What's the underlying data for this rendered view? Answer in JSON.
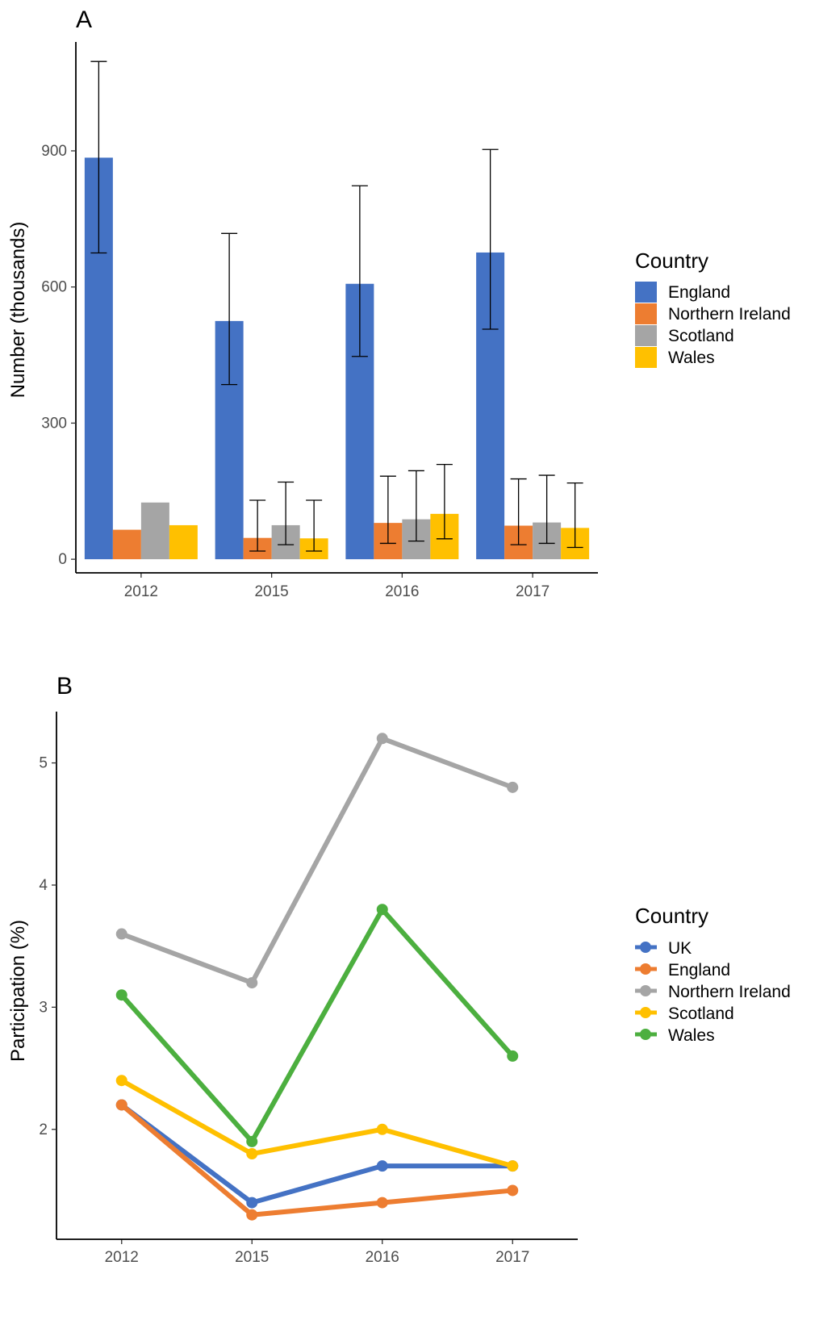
{
  "chart_data": [
    {
      "panel_label": "A",
      "type": "bar",
      "categories": [
        "2012",
        "2015",
        "2016",
        "2017"
      ],
      "xlabel": "",
      "ylabel": "Number (thousands)",
      "yticks": [
        "0",
        "300",
        "600",
        "900"
      ],
      "ylim": [
        -30,
        1140
      ],
      "grid": false,
      "legend": {
        "title": "Country",
        "position": "right"
      },
      "series": [
        {
          "name": "England",
          "color": "#4472C4",
          "values": [
            885,
            525,
            607,
            676
          ],
          "err_low": [
            675,
            385,
            447,
            507
          ],
          "err_high": [
            1097,
            718,
            823,
            903
          ]
        },
        {
          "name": "Northern Ireland",
          "color": "#ED7D31",
          "values": [
            65,
            47,
            80,
            74
          ],
          "err_low": [
            null,
            18,
            35,
            32
          ],
          "err_high": [
            null,
            130,
            183,
            177
          ]
        },
        {
          "name": "Scotland",
          "color": "#A5A5A5",
          "values": [
            125,
            75,
            88,
            81
          ],
          "err_low": [
            null,
            32,
            40,
            35
          ],
          "err_high": [
            null,
            170,
            195,
            185
          ]
        },
        {
          "name": "Wales",
          "color": "#FFC000",
          "values": [
            75,
            46,
            100,
            69
          ],
          "err_low": [
            null,
            18,
            45,
            26
          ],
          "err_high": [
            null,
            130,
            209,
            168
          ]
        }
      ]
    },
    {
      "panel_label": "B",
      "type": "line",
      "x": [
        "2012",
        "2015",
        "2016",
        "2017"
      ],
      "xlabel": "",
      "ylabel": "Participation (%)",
      "yticks": [
        "2",
        "3",
        "4",
        "5"
      ],
      "ylim": [
        1.1,
        5.42
      ],
      "grid": false,
      "legend": {
        "title": "Country",
        "position": "right"
      },
      "series": [
        {
          "name": "UK",
          "color": "#4472C4",
          "values": [
            2.2,
            1.4,
            1.7,
            1.7
          ]
        },
        {
          "name": "England",
          "color": "#ED7D31",
          "values": [
            2.2,
            1.3,
            1.4,
            1.5
          ]
        },
        {
          "name": "Northern Ireland",
          "color": "#A5A5A5",
          "values": [
            3.6,
            3.2,
            5.2,
            4.8
          ]
        },
        {
          "name": "Scotland",
          "color": "#FFC000",
          "values": [
            2.4,
            1.8,
            2.0,
            1.7
          ]
        },
        {
          "name": "Wales",
          "color": "#4CAF3F",
          "values": [
            3.1,
            1.9,
            3.8,
            2.6
          ]
        }
      ]
    }
  ]
}
